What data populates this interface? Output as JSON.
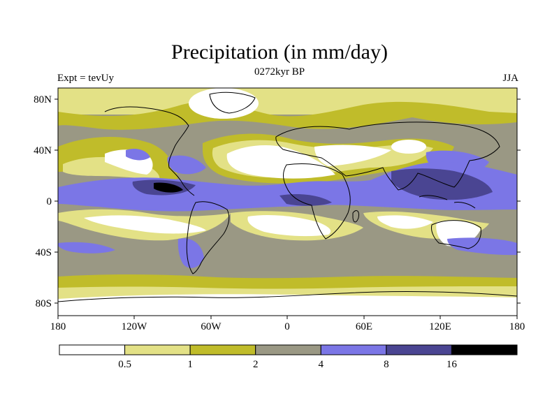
{
  "title": "Precipitation (in mm/day)",
  "subtitle": "0272kyr BP",
  "left_label": "Expt = tevUy",
  "right_label": "JJA",
  "lat_ticks": [
    "80N",
    "40N",
    "0",
    "40S",
    "80S"
  ],
  "lon_ticks": [
    "180",
    "120W",
    "60W",
    "0",
    "60E",
    "120E",
    "180"
  ],
  "colorbar": {
    "labels": [
      "0.5",
      "1",
      "2",
      "4",
      "8",
      "16"
    ],
    "colors": [
      "#ffffff",
      "#e3e186",
      "#c0bc2a",
      "#9a9884",
      "#7b76e6",
      "#4a4592",
      "#000000"
    ]
  }
}
